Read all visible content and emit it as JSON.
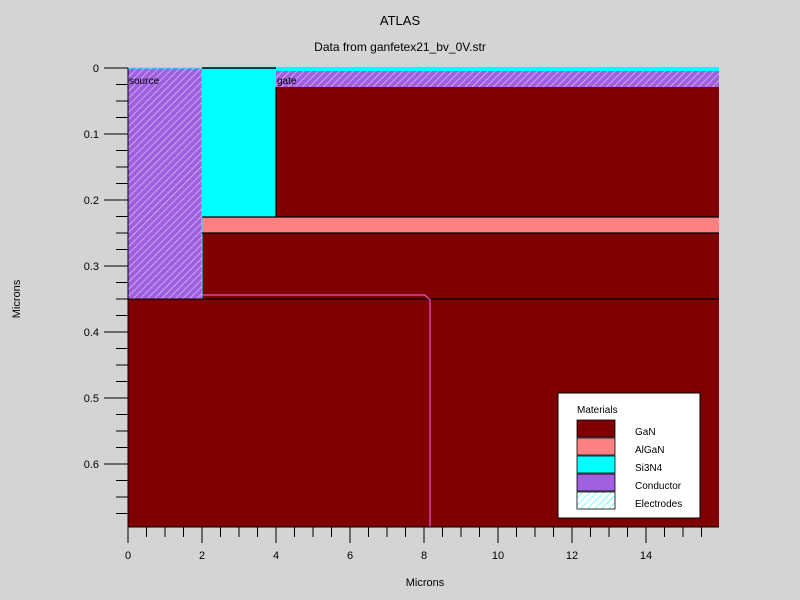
{
  "header": {
    "title": "ATLAS",
    "subtitle": "Data from ganfetex21_bv_0V.str"
  },
  "axes": {
    "xlabel": "Microns",
    "ylabel": "Microns",
    "x_ticks": [
      "0",
      "2",
      "4",
      "6",
      "8",
      "10",
      "12",
      "14"
    ],
    "y_ticks": [
      "0",
      "0.1",
      "0.2",
      "0.3",
      "0.4",
      "0.5",
      "0.6"
    ],
    "xlim": [
      0,
      16
    ],
    "ylim": [
      0,
      0.7
    ]
  },
  "electrode_labels": {
    "source": "source",
    "gate": "gate"
  },
  "legend": {
    "title": "Materials",
    "items": [
      {
        "label": "GaN",
        "color": "#7f0000"
      },
      {
        "label": "AlGaN",
        "color": "#ff8080"
      },
      {
        "label": "Si3N4",
        "color": "#00ffff"
      },
      {
        "label": "Conductor",
        "color": "#9f5fdf"
      },
      {
        "label": "Electrodes",
        "color": "#ffffff"
      }
    ]
  },
  "colors": {
    "gan": "#7f0000",
    "algan": "#ff8080",
    "si3n4": "#00ffff",
    "conductor": "#9f5fdf",
    "electrode_hatch": "#00ffff",
    "junction": "#ff66ff",
    "background": "#d4d4d4"
  }
}
